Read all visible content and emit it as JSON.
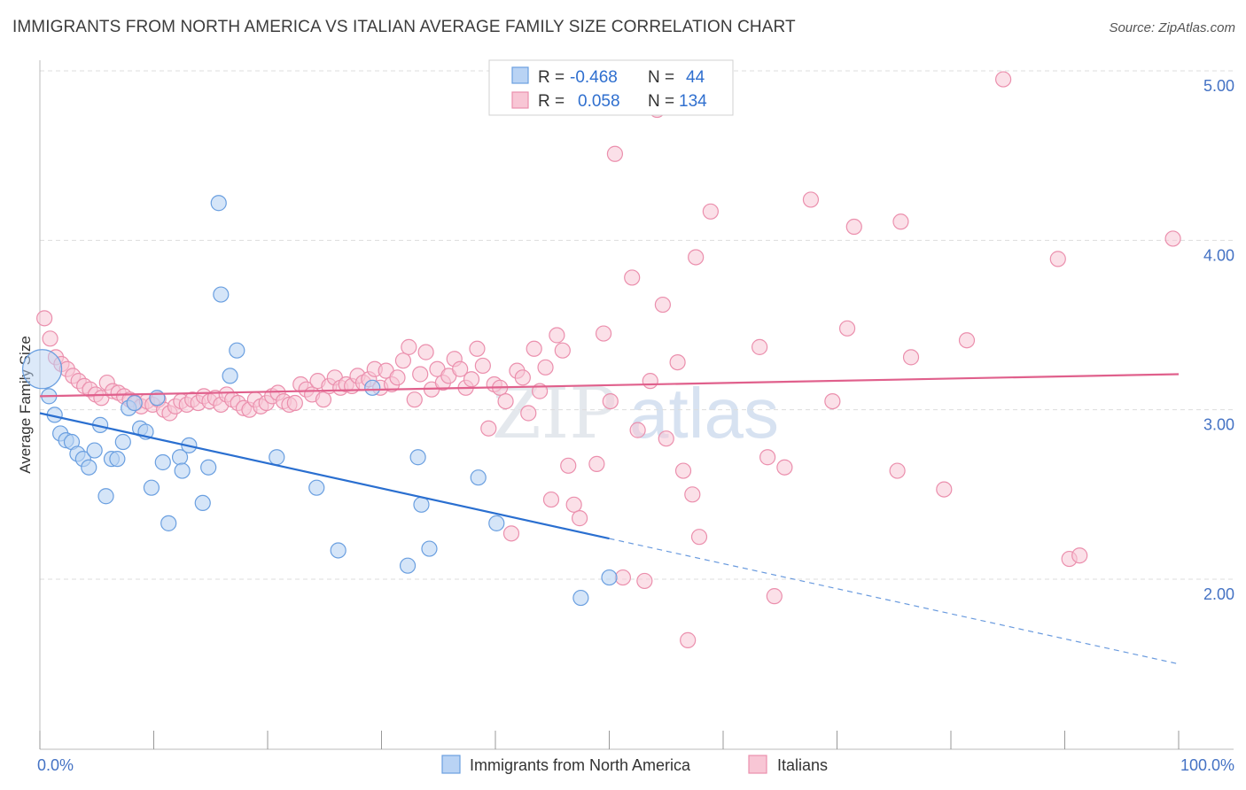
{
  "header": {
    "title": "IMMIGRANTS FROM NORTH AMERICA VS ITALIAN AVERAGE FAMILY SIZE CORRELATION CHART",
    "source": "Source: ZipAtlas.com"
  },
  "watermark": {
    "zip": "ZIP",
    "atlas": "atlas"
  },
  "colors": {
    "blue_fill": "#b9d3f4",
    "blue_stroke": "#6a9fe0",
    "blue_line": "#2a6fd0",
    "pink_fill": "#f8c6d5",
    "pink_stroke": "#eb8fad",
    "pink_line": "#e0608c",
    "grid": "#dddddd",
    "tick_label": "#4472c4"
  },
  "legend": {
    "rows": [
      {
        "r_label": "R =",
        "r_value": "-0.468",
        "n_label": "N =",
        "n_value": "44"
      },
      {
        "r_label": "R =",
        "r_value": "0.058",
        "n_label": "N =",
        "n_value": "134"
      }
    ]
  },
  "bottom_legend": {
    "items": [
      {
        "label": "Immigrants from North America"
      },
      {
        "label": "Italians"
      }
    ]
  },
  "chart_data": {
    "type": "scatter",
    "title": "IMMIGRANTS FROM NORTH AMERICA VS ITALIAN AVERAGE FAMILY SIZE CORRELATION CHART",
    "ylabel": "Average Family Size",
    "xlabel": "",
    "xlim": [
      0,
      100
    ],
    "ylim": [
      1.0,
      5.1
    ],
    "x_tick_labels": [
      "0.0%",
      "100.0%"
    ],
    "y_ticks": [
      2.0,
      3.0,
      4.0,
      5.0
    ],
    "y_tick_labels": [
      "2.00",
      "3.00",
      "4.00",
      "5.00"
    ],
    "grid": true,
    "legend_position": "top-center",
    "series": [
      {
        "name": "Immigrants from North America",
        "color": "#6a9fe0",
        "r": -0.468,
        "n": 44,
        "trend": {
          "x0": 0,
          "y0": 2.98,
          "x1": 50,
          "y1": 2.24,
          "dash_to_x": 100,
          "dash_to_y": 1.5
        },
        "points": [
          [
            0.2,
            3.24
          ],
          [
            0.8,
            3.08
          ],
          [
            1.3,
            2.97
          ],
          [
            1.8,
            2.86
          ],
          [
            2.3,
            2.82
          ],
          [
            2.8,
            2.81
          ],
          [
            3.3,
            2.74
          ],
          [
            3.8,
            2.71
          ],
          [
            4.3,
            2.66
          ],
          [
            4.8,
            2.76
          ],
          [
            5.3,
            2.91
          ],
          [
            5.8,
            2.49
          ],
          [
            6.3,
            2.71
          ],
          [
            6.8,
            2.71
          ],
          [
            7.3,
            2.81
          ],
          [
            7.8,
            3.01
          ],
          [
            8.3,
            3.04
          ],
          [
            8.8,
            2.89
          ],
          [
            9.3,
            2.87
          ],
          [
            9.8,
            2.54
          ],
          [
            10.3,
            3.07
          ],
          [
            10.8,
            2.69
          ],
          [
            11.3,
            2.33
          ],
          [
            12.3,
            2.72
          ],
          [
            12.5,
            2.64
          ],
          [
            13.1,
            2.79
          ],
          [
            14.3,
            2.45
          ],
          [
            14.8,
            2.66
          ],
          [
            15.7,
            4.22
          ],
          [
            15.9,
            3.68
          ],
          [
            16.7,
            3.2
          ],
          [
            17.3,
            3.35
          ],
          [
            20.8,
            2.72
          ],
          [
            24.3,
            2.54
          ],
          [
            26.2,
            2.17
          ],
          [
            29.2,
            3.13
          ],
          [
            32.3,
            2.08
          ],
          [
            33.2,
            2.72
          ],
          [
            33.5,
            2.44
          ],
          [
            34.2,
            2.18
          ],
          [
            38.5,
            2.6
          ],
          [
            40.1,
            2.33
          ],
          [
            47.5,
            1.89
          ],
          [
            50.0,
            2.01
          ]
        ]
      },
      {
        "name": "Italians",
        "color": "#eb8fad",
        "r": 0.058,
        "n": 134,
        "trend": {
          "x0": 0,
          "y0": 3.08,
          "x1": 100,
          "y1": 3.21
        },
        "points": [
          [
            0.4,
            3.54
          ],
          [
            0.9,
            3.42
          ],
          [
            1.4,
            3.31
          ],
          [
            1.9,
            3.27
          ],
          [
            2.4,
            3.24
          ],
          [
            2.9,
            3.2
          ],
          [
            3.4,
            3.17
          ],
          [
            3.9,
            3.14
          ],
          [
            4.4,
            3.12
          ],
          [
            4.9,
            3.09
          ],
          [
            5.4,
            3.07
          ],
          [
            5.9,
            3.16
          ],
          [
            6.4,
            3.11
          ],
          [
            6.9,
            3.1
          ],
          [
            7.4,
            3.08
          ],
          [
            7.9,
            3.06
          ],
          [
            8.4,
            3.04
          ],
          [
            8.9,
            3.02
          ],
          [
            9.4,
            3.05
          ],
          [
            9.9,
            3.03
          ],
          [
            10.4,
            3.06
          ],
          [
            10.9,
            3.0
          ],
          [
            11.4,
            2.98
          ],
          [
            11.9,
            3.02
          ],
          [
            12.4,
            3.05
          ],
          [
            12.9,
            3.03
          ],
          [
            13.4,
            3.06
          ],
          [
            13.9,
            3.04
          ],
          [
            14.4,
            3.08
          ],
          [
            14.9,
            3.05
          ],
          [
            15.4,
            3.07
          ],
          [
            15.9,
            3.03
          ],
          [
            16.4,
            3.09
          ],
          [
            16.9,
            3.06
          ],
          [
            17.4,
            3.04
          ],
          [
            17.9,
            3.01
          ],
          [
            18.4,
            3.0
          ],
          [
            18.9,
            3.06
          ],
          [
            19.4,
            3.02
          ],
          [
            19.9,
            3.04
          ],
          [
            20.4,
            3.08
          ],
          [
            20.9,
            3.1
          ],
          [
            21.4,
            3.05
          ],
          [
            21.9,
            3.03
          ],
          [
            22.4,
            3.04
          ],
          [
            22.9,
            3.15
          ],
          [
            23.4,
            3.12
          ],
          [
            23.9,
            3.09
          ],
          [
            24.4,
            3.17
          ],
          [
            24.9,
            3.06
          ],
          [
            25.4,
            3.14
          ],
          [
            25.9,
            3.19
          ],
          [
            26.4,
            3.13
          ],
          [
            26.9,
            3.15
          ],
          [
            27.4,
            3.14
          ],
          [
            27.9,
            3.2
          ],
          [
            28.4,
            3.16
          ],
          [
            28.9,
            3.18
          ],
          [
            29.4,
            3.24
          ],
          [
            29.9,
            3.13
          ],
          [
            30.4,
            3.23
          ],
          [
            30.9,
            3.15
          ],
          [
            31.4,
            3.19
          ],
          [
            31.9,
            3.29
          ],
          [
            32.4,
            3.37
          ],
          [
            32.9,
            3.06
          ],
          [
            33.4,
            3.21
          ],
          [
            33.9,
            3.34
          ],
          [
            34.4,
            3.12
          ],
          [
            34.9,
            3.24
          ],
          [
            35.4,
            3.16
          ],
          [
            35.9,
            3.2
          ],
          [
            36.4,
            3.3
          ],
          [
            36.9,
            3.24
          ],
          [
            37.4,
            3.13
          ],
          [
            37.9,
            3.18
          ],
          [
            38.4,
            3.36
          ],
          [
            38.9,
            3.26
          ],
          [
            39.4,
            2.89
          ],
          [
            39.9,
            3.15
          ],
          [
            40.4,
            3.13
          ],
          [
            40.9,
            3.05
          ],
          [
            41.4,
            2.27
          ],
          [
            41.9,
            3.23
          ],
          [
            42.4,
            3.19
          ],
          [
            42.9,
            2.98
          ],
          [
            43.4,
            3.36
          ],
          [
            43.9,
            3.11
          ],
          [
            44.4,
            3.25
          ],
          [
            44.9,
            2.47
          ],
          [
            45.4,
            3.44
          ],
          [
            45.9,
            3.35
          ],
          [
            46.4,
            2.67
          ],
          [
            46.9,
            2.44
          ],
          [
            47.4,
            2.36
          ],
          [
            48.9,
            2.68
          ],
          [
            49.5,
            3.45
          ],
          [
            50.1,
            3.05
          ],
          [
            50.5,
            4.51
          ],
          [
            51.2,
            2.01
          ],
          [
            52.0,
            3.78
          ],
          [
            52.5,
            2.88
          ],
          [
            53.1,
            1.99
          ],
          [
            53.6,
            3.17
          ],
          [
            54.2,
            4.77
          ],
          [
            54.7,
            3.62
          ],
          [
            55.0,
            2.83
          ],
          [
            56.0,
            3.28
          ],
          [
            56.5,
            2.64
          ],
          [
            56.9,
            1.64
          ],
          [
            57.3,
            2.5
          ],
          [
            57.6,
            3.9
          ],
          [
            57.9,
            2.25
          ],
          [
            58.9,
            4.17
          ],
          [
            63.2,
            3.37
          ],
          [
            63.9,
            2.72
          ],
          [
            64.5,
            1.9
          ],
          [
            65.4,
            2.66
          ],
          [
            67.7,
            4.24
          ],
          [
            69.6,
            3.05
          ],
          [
            70.9,
            3.48
          ],
          [
            71.5,
            4.08
          ],
          [
            75.3,
            2.64
          ],
          [
            75.6,
            4.11
          ],
          [
            76.5,
            3.31
          ],
          [
            79.4,
            2.53
          ],
          [
            81.4,
            3.41
          ],
          [
            84.6,
            4.95
          ],
          [
            89.4,
            3.89
          ],
          [
            90.4,
            2.12
          ],
          [
            91.3,
            2.14
          ],
          [
            99.5,
            4.01
          ]
        ]
      }
    ]
  }
}
